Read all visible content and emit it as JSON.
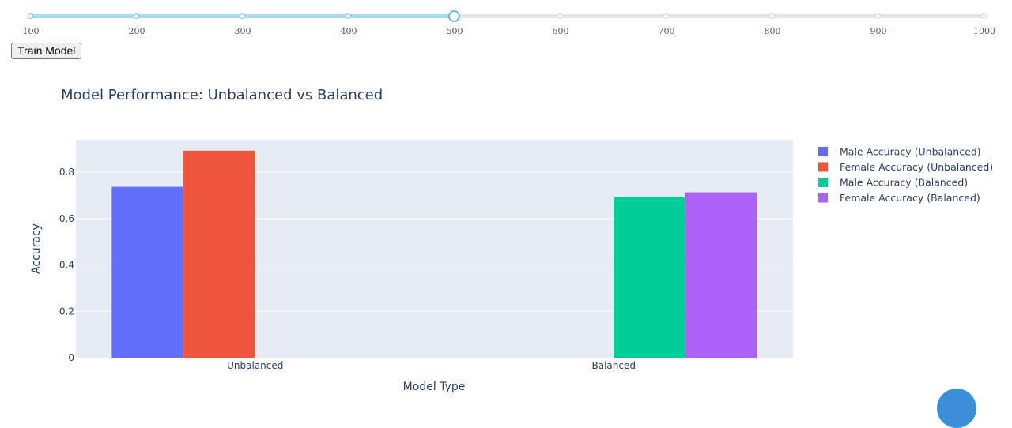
{
  "slider": {
    "marks": [
      "100",
      "200",
      "300",
      "400",
      "500",
      "600",
      "700",
      "800",
      "900",
      "1000"
    ],
    "min": 100,
    "max": 1000,
    "value": 500
  },
  "train_button": {
    "label": "Train Model"
  },
  "chart_data": {
    "type": "bar",
    "title": "Model Performance: Unbalanced vs Balanced",
    "xlabel": "Model Type",
    "ylabel": "Accuracy",
    "categories": [
      "Unbalanced",
      "Balanced"
    ],
    "ylim": [
      0,
      0.94
    ],
    "yticks": [
      0,
      0.2,
      0.4,
      0.6,
      0.8
    ],
    "ytick_labels": [
      "0",
      "0.2",
      "0.4",
      "0.6",
      "0.8"
    ],
    "grid": true,
    "legend_position": "right",
    "plot_bgcolor": "#e5ecf6",
    "series": [
      {
        "name": "Male Accuracy (Unbalanced)",
        "color": "#636efa",
        "values": [
          0.737,
          null
        ]
      },
      {
        "name": "Female Accuracy (Unbalanced)",
        "color": "#ef553b",
        "values": [
          0.893,
          null
        ]
      },
      {
        "name": "Male Accuracy (Balanced)",
        "color": "#00cc96",
        "values": [
          null,
          0.692
        ]
      },
      {
        "name": "Female Accuracy (Balanced)",
        "color": "#ab63fa",
        "values": [
          null,
          0.713
        ]
      }
    ]
  }
}
